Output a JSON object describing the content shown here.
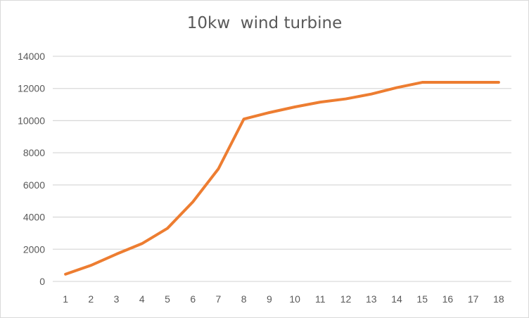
{
  "chart_data": {
    "type": "line",
    "title": "10kw  wind turbine",
    "xlabel": "",
    "ylabel": "",
    "categories": [
      "1",
      "2",
      "3",
      "4",
      "5",
      "6",
      "7",
      "8",
      "9",
      "10",
      "11",
      "12",
      "13",
      "14",
      "15",
      "16",
      "17",
      "18"
    ],
    "series": [
      {
        "values": [
          450,
          1000,
          1700,
          2350,
          3300,
          4950,
          7000,
          10100,
          10500,
          10850,
          11150,
          11350,
          11650,
          12050,
          12380,
          12380,
          12380,
          12380
        ],
        "color": "#ed7d31"
      }
    ],
    "ylim": [
      0,
      14000
    ],
    "yticks": [
      0,
      2000,
      4000,
      6000,
      8000,
      10000,
      12000,
      14000
    ],
    "grid": true,
    "legend": "none",
    "gridColor": "#d9d9d9"
  }
}
